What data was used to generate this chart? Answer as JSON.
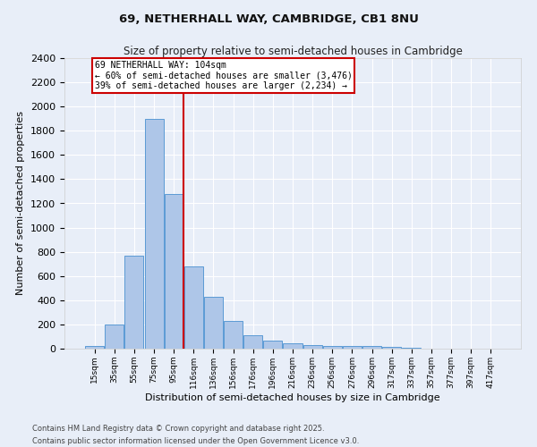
{
  "title": "69, NETHERHALL WAY, CAMBRIDGE, CB1 8NU",
  "subtitle": "Size of property relative to semi-detached houses in Cambridge",
  "xlabel": "Distribution of semi-detached houses by size in Cambridge",
  "ylabel": "Number of semi-detached properties",
  "categories": [
    "15sqm",
    "35sqm",
    "55sqm",
    "75sqm",
    "95sqm",
    "116sqm",
    "136sqm",
    "156sqm",
    "176sqm",
    "196sqm",
    "216sqm",
    "236sqm",
    "256sqm",
    "276sqm",
    "296sqm",
    "317sqm",
    "337sqm",
    "357sqm",
    "377sqm",
    "397sqm",
    "417sqm"
  ],
  "values": [
    25,
    200,
    770,
    1900,
    1280,
    680,
    430,
    230,
    110,
    65,
    45,
    30,
    25,
    20,
    20,
    15,
    5,
    0,
    0,
    0,
    0
  ],
  "bar_color": "#aec6e8",
  "bar_edge_color": "#5b9bd5",
  "vline_color": "#cc0000",
  "vline_x": 4.5,
  "annotation_text": "69 NETHERHALL WAY: 104sqm\n← 60% of semi-detached houses are smaller (3,476)\n39% of semi-detached houses are larger (2,234) →",
  "annotation_box_facecolor": "#ffffff",
  "annotation_box_edgecolor": "#cc0000",
  "ylim": [
    0,
    2400
  ],
  "yticks": [
    0,
    200,
    400,
    600,
    800,
    1000,
    1200,
    1400,
    1600,
    1800,
    2000,
    2200,
    2400
  ],
  "bg_color": "#e8eef8",
  "grid_color": "#ffffff",
  "footer": "Contains HM Land Registry data © Crown copyright and database right 2025.\nContains public sector information licensed under the Open Government Licence v3.0."
}
